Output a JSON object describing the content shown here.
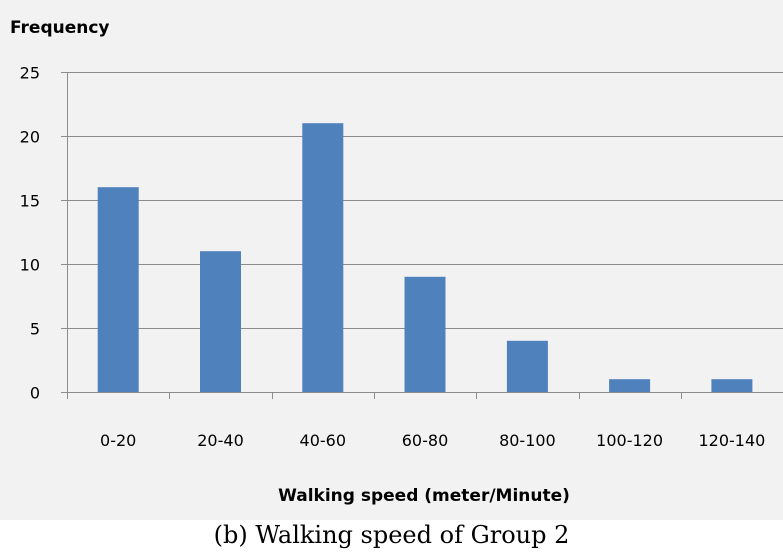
{
  "chart_data": {
    "type": "bar",
    "categories": [
      "0-20",
      "20-40",
      "40-60",
      "60-80",
      "80-100",
      "100-120",
      "120-140"
    ],
    "values": [
      16,
      11,
      21,
      9,
      4,
      1,
      1
    ],
    "ylabel": "Frequency",
    "xlabel": "Walking speed (meter/Minute)",
    "ylim": [
      0,
      25
    ],
    "yticks": [
      0,
      5,
      10,
      15,
      20,
      25
    ],
    "grid": true,
    "legend": "none",
    "bar_color": "#4f81bd"
  },
  "caption": "(b) Walking speed of Group 2"
}
